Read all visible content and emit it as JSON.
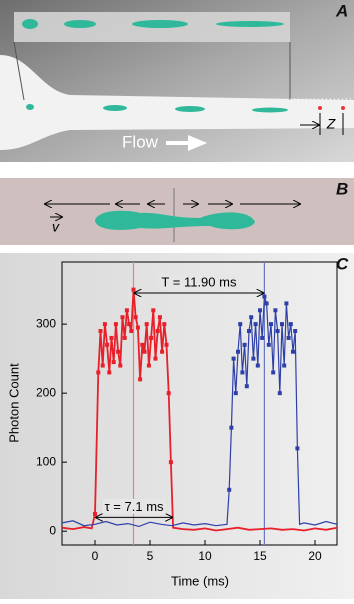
{
  "panels": [
    {
      "label": "A",
      "annotations": [
        "Flow",
        "Z"
      ]
    },
    {
      "label": "B",
      "annotations": [
        "v"
      ]
    }
  ],
  "chart_data": {
    "type": "line",
    "label": "C",
    "x_label": "Time (ms)",
    "y_label": "Photon Count",
    "xlim": [
      -3,
      22
    ],
    "ylim": [
      -20,
      390
    ],
    "xticks": [
      0,
      5,
      10,
      15,
      20
    ],
    "yticks": [
      0,
      100,
      200,
      300
    ],
    "series": [
      {
        "color": "#e8202a",
        "x": [
          -3,
          -2,
          -1,
          -0.3,
          0,
          0.3,
          0.5,
          0.7,
          0.9,
          1.1,
          1.3,
          1.5,
          1.7,
          1.9,
          2.1,
          2.3,
          2.5,
          2.7,
          2.9,
          3.1,
          3.3,
          3.5,
          3.7,
          3.9,
          4.1,
          4.3,
          4.5,
          4.7,
          4.9,
          5.1,
          5.3,
          5.5,
          5.7,
          5.9,
          6.1,
          6.3,
          6.5,
          6.7,
          6.9,
          7.1,
          8,
          9,
          10,
          11,
          12,
          13,
          14,
          15,
          16,
          17,
          18,
          19,
          20,
          21,
          22
        ],
        "values": [
          5,
          3,
          6,
          4,
          25,
          230,
          290,
          240,
          300,
          270,
          230,
          280,
          245,
          300,
          260,
          240,
          310,
          280,
          320,
          300,
          290,
          350,
          310,
          295,
          220,
          270,
          260,
          300,
          240,
          280,
          320,
          250,
          290,
          310,
          260,
          300,
          270,
          200,
          100,
          5,
          3,
          2,
          4,
          1,
          3,
          5,
          2,
          3,
          4,
          2,
          3,
          1,
          4,
          2,
          5
        ]
      },
      {
        "color": "#2e3fa8",
        "x": [
          -3,
          -2,
          -1,
          0,
          1,
          2,
          3,
          4,
          5,
          6,
          7,
          8,
          9,
          10,
          11,
          12,
          12.2,
          12.4,
          12.6,
          12.8,
          13,
          13.2,
          13.4,
          13.6,
          13.8,
          14,
          14.2,
          14.4,
          14.6,
          14.8,
          15,
          15.2,
          15.4,
          15.6,
          15.8,
          16,
          16.2,
          16.4,
          16.6,
          16.8,
          17,
          17.2,
          17.4,
          17.6,
          17.8,
          18,
          18.2,
          18.4,
          18.6,
          19,
          20,
          21,
          22
        ],
        "values": [
          12,
          15,
          8,
          10,
          14,
          9,
          11,
          7,
          13,
          10,
          8,
          12,
          9,
          11,
          8,
          10,
          60,
          150,
          250,
          200,
          260,
          300,
          230,
          270,
          210,
          290,
          310,
          250,
          300,
          240,
          320,
          280,
          340,
          330,
          270,
          300,
          230,
          320,
          290,
          200,
          300,
          240,
          330,
          280,
          300,
          260,
          290,
          120,
          10,
          12,
          9,
          14,
          10
        ]
      }
    ],
    "markers": [
      {
        "x": 3.5,
        "color": "#f08080"
      },
      {
        "x": 15.4,
        "color": "#6a78c8"
      }
    ],
    "annotations": [
      {
        "text": "T = 11.90 ms",
        "x": [
          3.5,
          15.4
        ]
      },
      {
        "text": "τ = 7.1 ms",
        "x": [
          0,
          7.1
        ]
      }
    ]
  }
}
